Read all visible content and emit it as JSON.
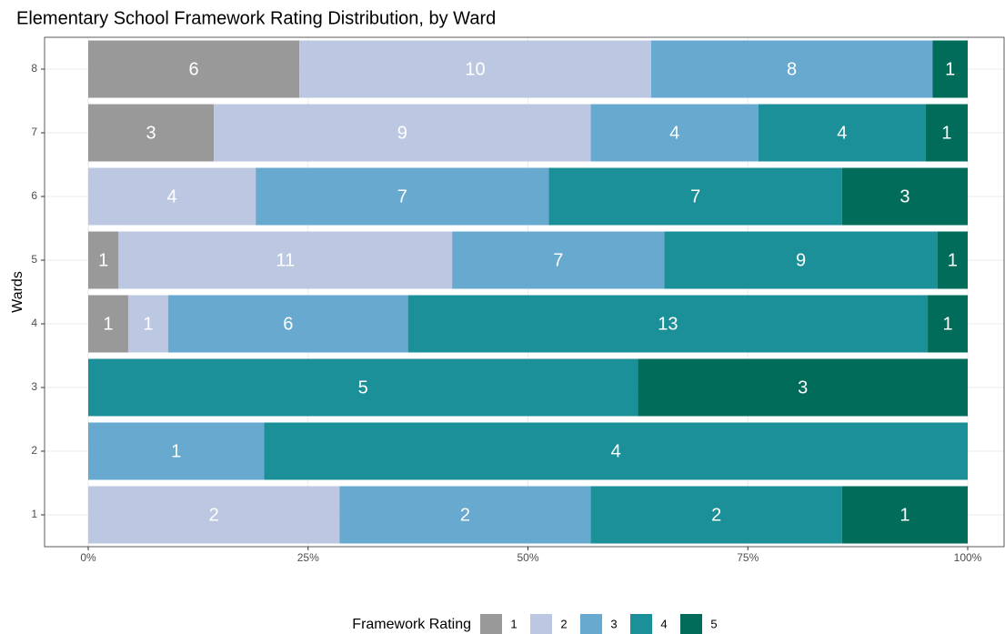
{
  "chart_data": {
    "type": "bar",
    "orientation": "horizontal",
    "stacking": "percent",
    "title": "Elementary School Framework Rating Distribution, by Ward",
    "y_label": "Wards",
    "legend_title": "Framework Rating",
    "legend_position": "bottom",
    "grid": true,
    "categories": [
      "1",
      "2",
      "3",
      "4",
      "5",
      "6",
      "7",
      "8"
    ],
    "series": [
      {
        "name": "1",
        "color": "#999999",
        "values": [
          null,
          null,
          null,
          1,
          1,
          null,
          3,
          6
        ]
      },
      {
        "name": "2",
        "color": "#bcc7e1",
        "values": [
          2,
          null,
          null,
          1,
          11,
          4,
          9,
          10
        ]
      },
      {
        "name": "3",
        "color": "#67a9cf",
        "values": [
          2,
          1,
          null,
          6,
          7,
          7,
          4,
          8
        ]
      },
      {
        "name": "4",
        "color": "#1c9099",
        "values": [
          2,
          4,
          5,
          13,
          9,
          7,
          4,
          null
        ]
      },
      {
        "name": "5",
        "color": "#016c59",
        "values": [
          1,
          null,
          3,
          1,
          1,
          3,
          1,
          1
        ]
      }
    ],
    "xlim": [
      0,
      100
    ],
    "xticks": [
      {
        "value": 0,
        "label": "0%"
      },
      {
        "value": 25,
        "label": "25%"
      },
      {
        "value": 50,
        "label": "50%"
      },
      {
        "value": 75,
        "label": "75%"
      },
      {
        "value": 100,
        "label": "100%"
      }
    ]
  }
}
